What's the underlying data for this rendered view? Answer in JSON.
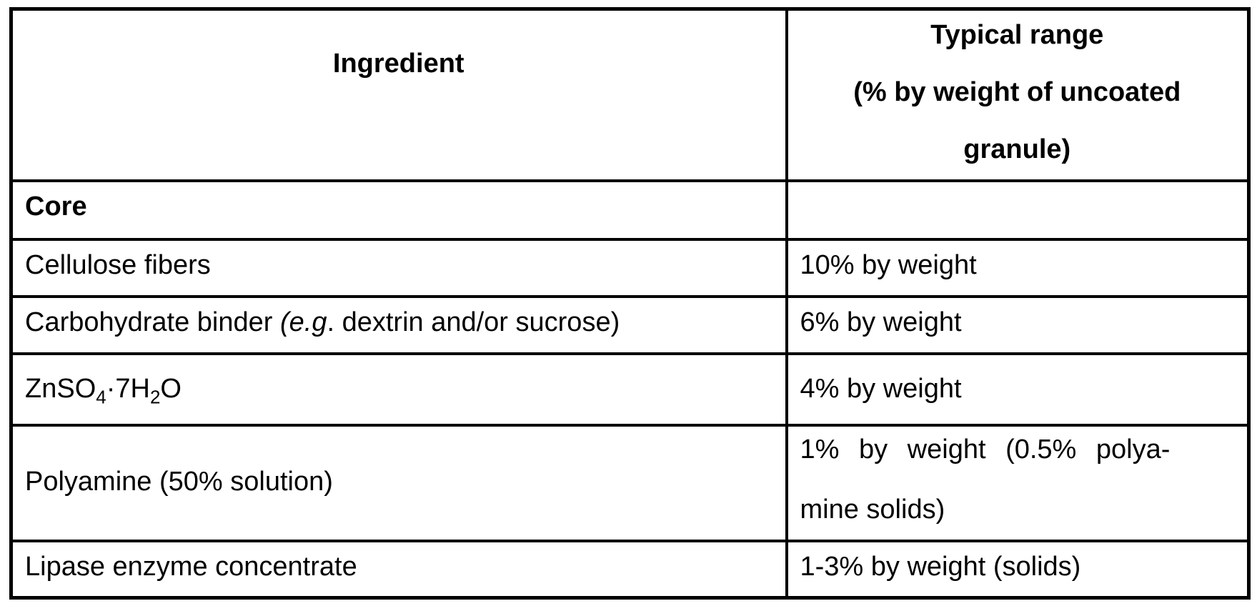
{
  "colors": {
    "background": "#ffffff",
    "text": "#000000",
    "border": "#000000"
  },
  "table": {
    "header": {
      "ingredient_label": "Ingredient",
      "typical_range_lines": [
        "Typical range",
        "(% by weight of uncoated",
        "granule)"
      ]
    },
    "rows": [
      {
        "ingredient": "Core",
        "range": ""
      },
      {
        "ingredient": "Cellulose fibers",
        "range": "10% by weight"
      },
      {
        "ingredient_plain": "Carbohydrate binder (e.g. dextrin and/or sucrose)",
        "ingredient_segments": [
          {
            "t": "Carbohydrate binder "
          },
          {
            "t": "(e.g",
            "style": "italic"
          },
          {
            "t": ". dextrin and/or sucrose)"
          }
        ],
        "range": "6% by weight"
      },
      {
        "ingredient_plain": "ZnSO4·7H2O",
        "ingredient_segments": [
          {
            "t": "ZnSO"
          },
          {
            "t": "4",
            "style": "sub"
          },
          {
            "t": "·7H"
          },
          {
            "t": "2",
            "style": "sub"
          },
          {
            "t": "O"
          }
        ],
        "range": "4% by weight"
      },
      {
        "ingredient": "Polyamine (50% solution)",
        "range_plain": "1% by weight (0.5% polyamine solids)",
        "range_lines": [
          "1% by weight (0.5% polya-",
          "mine solids)"
        ]
      },
      {
        "ingredient": "Lipase enzyme concentrate",
        "range": "1-3% by weight (solids)"
      }
    ]
  }
}
